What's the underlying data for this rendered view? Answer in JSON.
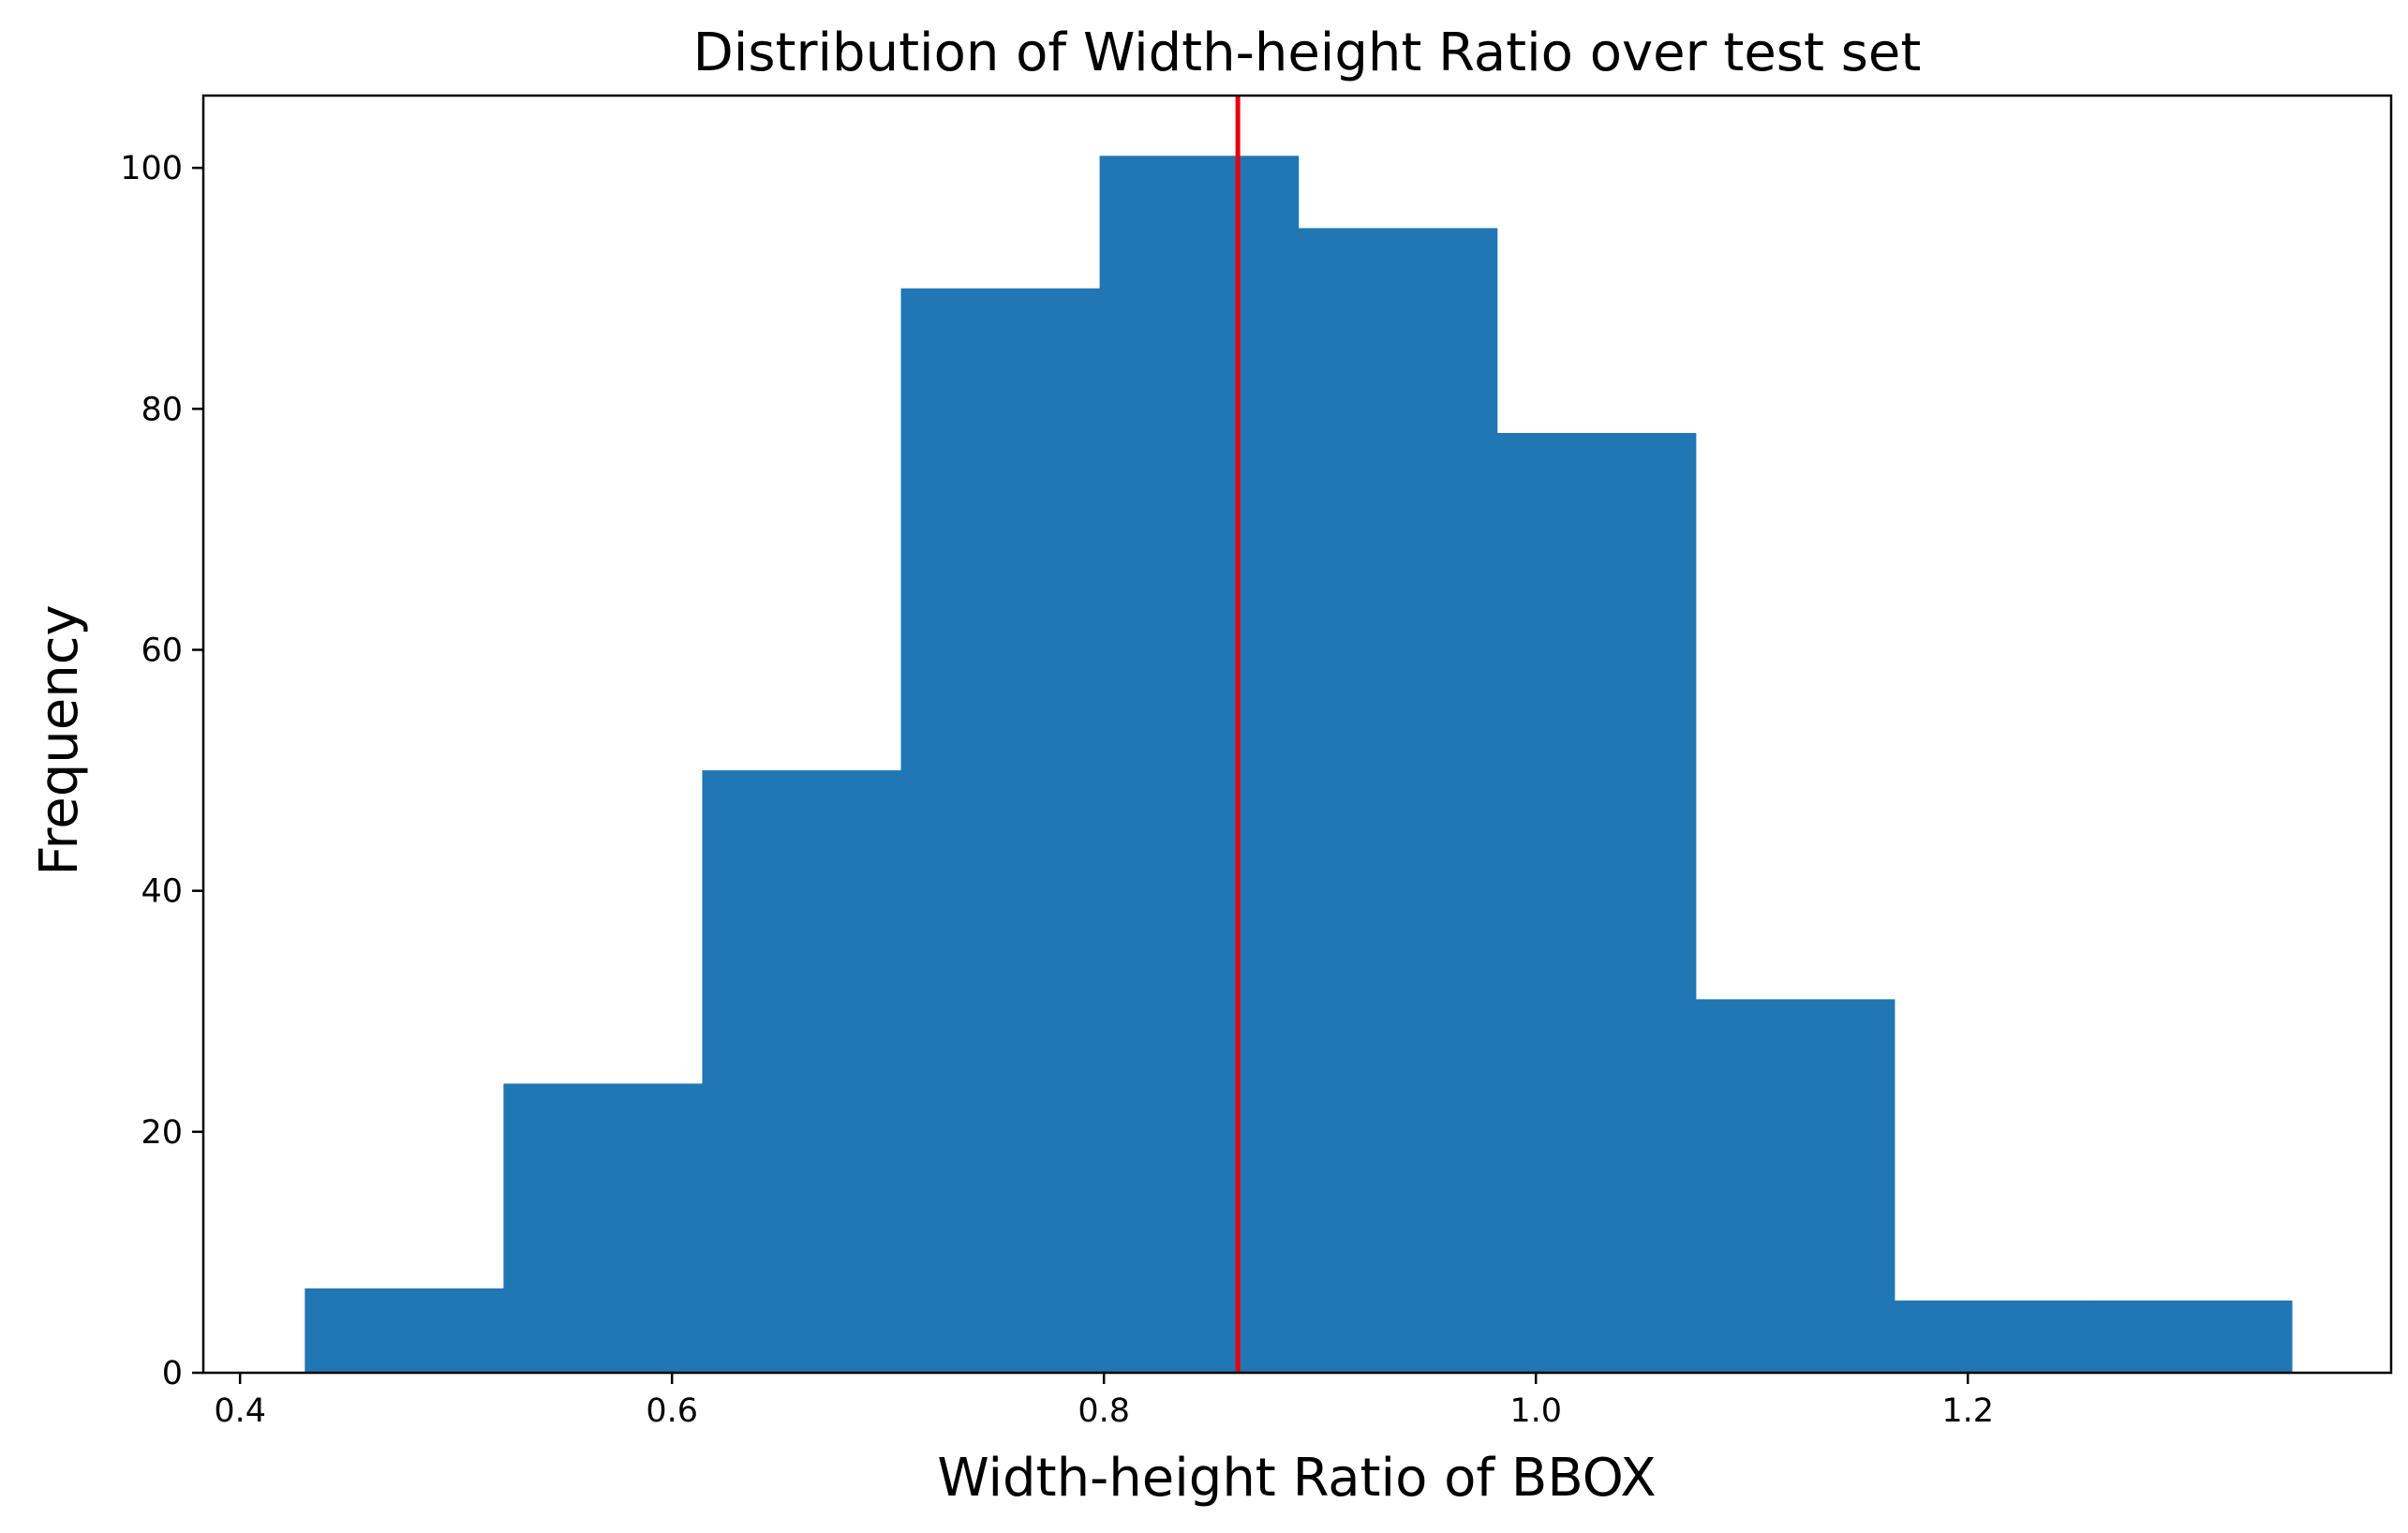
{
  "chart_data": {
    "type": "bar",
    "title": "Distribution of Width-height Ratio over test set",
    "xlabel": "Width-height Ratio of BBOX",
    "ylabel": "Frequency",
    "bin_edges": [
      0.43,
      0.522,
      0.614,
      0.706,
      0.798,
      0.89,
      0.982,
      1.074,
      1.166,
      1.258,
      1.35
    ],
    "values": [
      7,
      24,
      50,
      90,
      101,
      95,
      78,
      31,
      6,
      6
    ],
    "xlim": [
      0.383,
      1.396
    ],
    "ylim": [
      0,
      106
    ],
    "xticks": [
      0.4,
      0.6,
      0.8,
      1.0,
      1.2
    ],
    "xtick_labels": [
      "0.4",
      "0.6",
      "0.8",
      "1.0",
      "1.2"
    ],
    "yticks": [
      0,
      20,
      40,
      60,
      80,
      100
    ],
    "ytick_labels": [
      "0",
      "20",
      "40",
      "60",
      "80",
      "100"
    ],
    "reference_line": {
      "x": 0.862,
      "color": "#e8000b"
    },
    "bar_color": "#2077b4",
    "grid": false
  }
}
